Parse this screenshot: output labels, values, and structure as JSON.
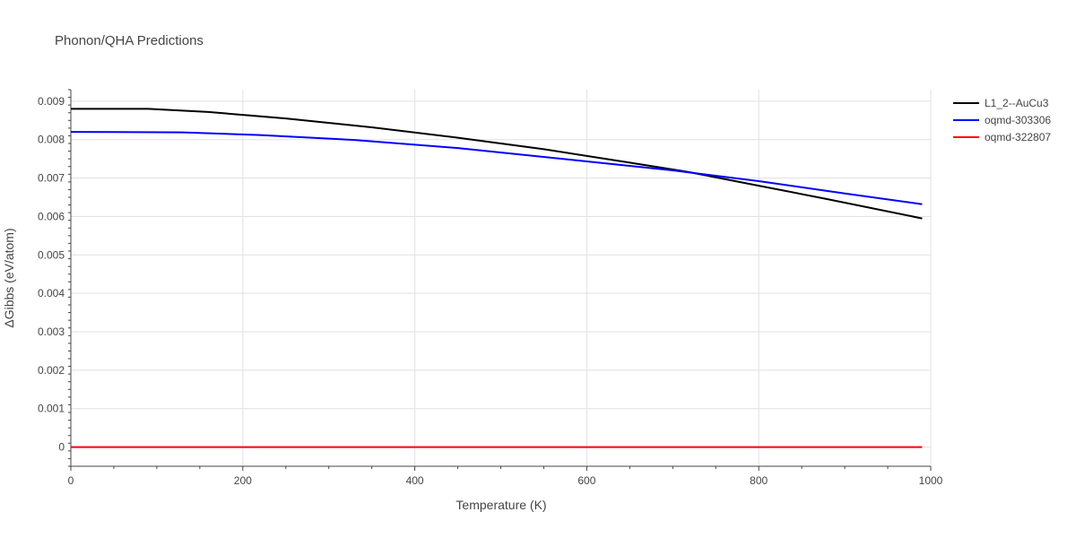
{
  "chart_data": {
    "type": "line",
    "title": "Phonon/QHA Predictions",
    "xlabel": "Temperature (K)",
    "ylabel": "ΔGibbs (eV/atom)",
    "xlim": [
      0,
      1000
    ],
    "ylim": [
      -0.0005,
      0.0093
    ],
    "x_ticks": [
      0,
      200,
      400,
      600,
      800,
      1000
    ],
    "x_tick_labels": [
      "0",
      "200",
      "400",
      "600",
      "800",
      "1000"
    ],
    "y_ticks": [
      0,
      0.001,
      0.002,
      0.003,
      0.004,
      0.005,
      0.006,
      0.007,
      0.008,
      0.009
    ],
    "y_tick_labels": [
      "0",
      "0.001",
      "0.002",
      "0.003",
      "0.004",
      "0.005",
      "0.006",
      "0.007",
      "0.008",
      "0.009"
    ],
    "grid": true,
    "legend_position": "top-right",
    "series": [
      {
        "name": "L1_2--AuCu3",
        "color": "#000000",
        "x": [
          0,
          90,
          160,
          250,
          350,
          450,
          550,
          650,
          720,
          800,
          880,
          990
        ],
        "y": [
          0.0088,
          0.0088,
          0.00872,
          0.00855,
          0.00832,
          0.00805,
          0.00775,
          0.0074,
          0.00715,
          0.0068,
          0.00645,
          0.00595
        ]
      },
      {
        "name": "oqmd-303306",
        "color": "#0000ff",
        "x": [
          0,
          130,
          220,
          330,
          450,
          580,
          700,
          800,
          900,
          990
        ],
        "y": [
          0.0082,
          0.00819,
          0.00812,
          0.00799,
          0.00778,
          0.00748,
          0.0072,
          0.00692,
          0.0066,
          0.00632
        ]
      },
      {
        "name": "oqmd-322807",
        "color": "#ff0000",
        "x": [
          0,
          990
        ],
        "y": [
          0,
          0
        ]
      }
    ]
  }
}
